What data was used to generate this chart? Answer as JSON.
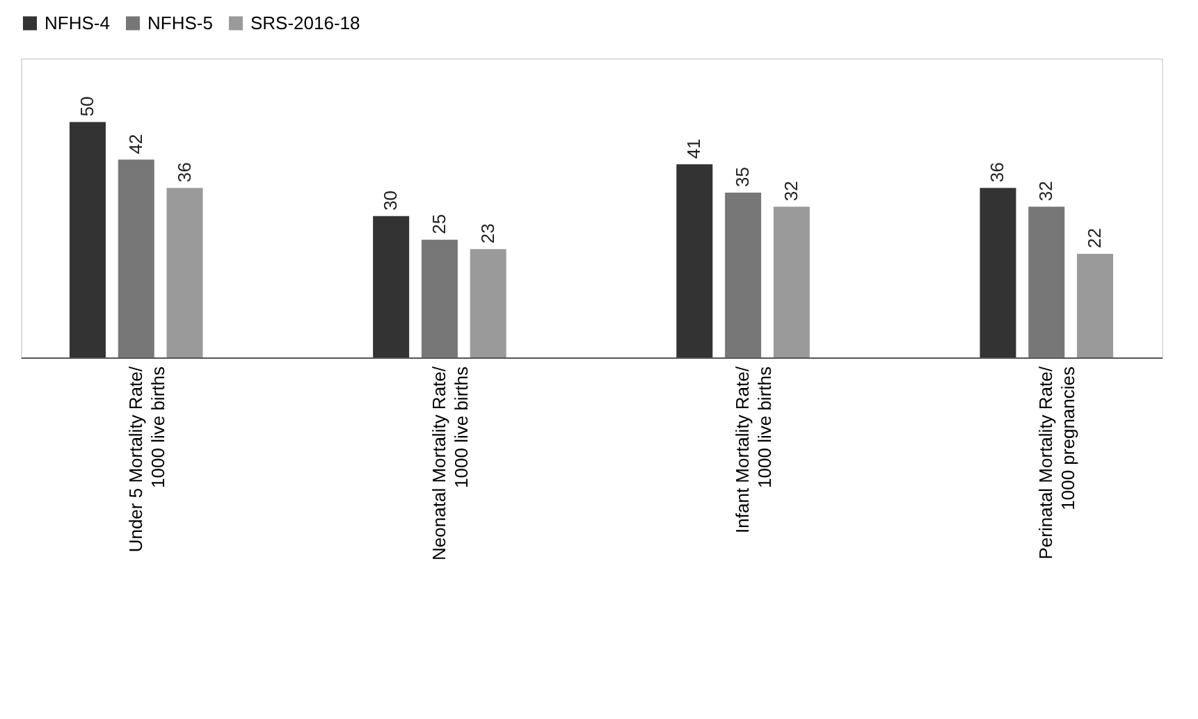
{
  "chart_data": {
    "type": "bar",
    "categories": [
      "Under 5 Mortality Rate/\n1000 live births",
      "Neonatal Mortality Rate/\n1000 live births",
      "Infant Mortality Rate/\n1000 live births",
      "Perinatal Mortality Rate/\n1000 pregnancies"
    ],
    "series": [
      {
        "name": "NFHS-4",
        "color": "#333333",
        "values": [
          50,
          30,
          41,
          36
        ]
      },
      {
        "name": "NFHS-5",
        "color": "#777777",
        "values": [
          42,
          25,
          35,
          32
        ]
      },
      {
        "name": "SRS-2016-18",
        "color": "#9a9a9a",
        "values": [
          36,
          23,
          32,
          22
        ]
      }
    ],
    "data_labels": true,
    "legend": "top",
    "grid": false
  }
}
